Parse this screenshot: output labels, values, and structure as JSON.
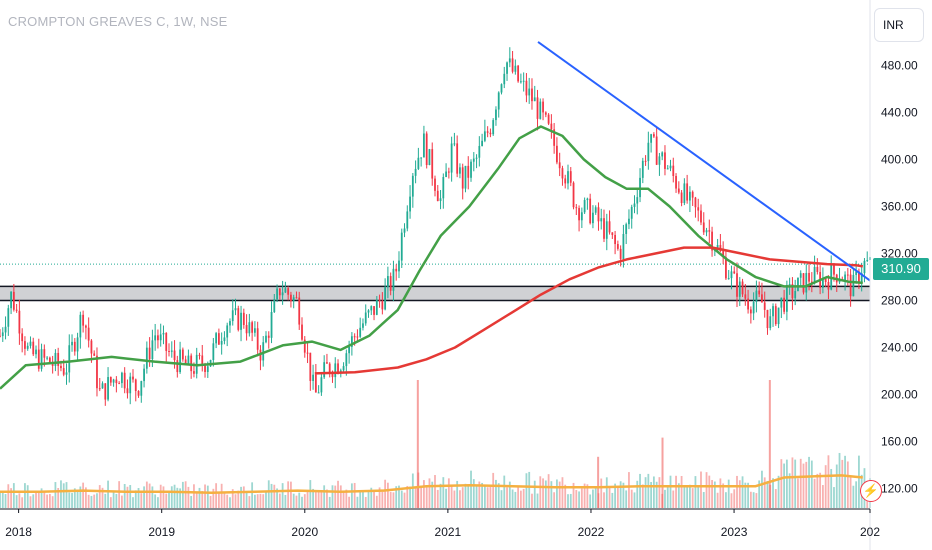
{
  "header": {
    "symbol": "CROMPTON GREAVES C, 1W, NSE"
  },
  "currency": "INR",
  "last_price_label": "310.90",
  "flash_icon": "lightning-icon",
  "colors": {
    "up": "#22ab94",
    "down": "#f23645",
    "trendline": "#2962ff",
    "sma_short": "#43a047",
    "sma_long": "#e53935",
    "volume_ma": "#f5b041",
    "zone_fill": "#c8c9cd",
    "price_tag": "#22ab94"
  },
  "chart_data": {
    "type": "line",
    "title": "CROMPTON GREAVES C, 1W, NSE",
    "y_axis": {
      "ticks": [
        "480.00",
        "440.00",
        "400.00",
        "360.00",
        "320.00",
        "280.00",
        "240.00",
        "200.00",
        "160.00",
        "120.00"
      ],
      "ylim": [
        112,
        505
      ]
    },
    "x_axis": {
      "ticks": [
        "2018",
        "2019",
        "2020",
        "2021",
        "2022",
        "2023",
        "202"
      ]
    },
    "last_price": 310.9,
    "price_series": {
      "name": "Close",
      "x": [
        2017.92,
        2018.0,
        2018.12,
        2018.25,
        2018.38,
        2018.5,
        2018.62,
        2018.75,
        2018.88,
        2019.0,
        2019.12,
        2019.25,
        2019.38,
        2019.5,
        2019.62,
        2019.75,
        2019.88,
        2020.0,
        2020.12,
        2020.2,
        2020.3,
        2020.42,
        2020.55,
        2020.68,
        2020.8,
        2020.88,
        2021.0,
        2021.08,
        2021.15,
        2021.25,
        2021.35,
        2021.45,
        2021.55,
        2021.65,
        2021.75,
        2021.85,
        2021.95,
        2022.05,
        2022.15,
        2022.25,
        2022.35,
        2022.45,
        2022.55,
        2022.65,
        2022.75,
        2022.85,
        2022.95,
        2023.05,
        2023.15,
        2023.25,
        2023.3,
        2023.38,
        2023.48,
        2023.58,
        2023.68,
        2023.78,
        2023.88,
        2023.95
      ],
      "y": [
        250,
        285,
        235,
        228,
        222,
        270,
        200,
        218,
        205,
        252,
        232,
        222,
        230,
        262,
        265,
        235,
        292,
        278,
        198,
        222,
        228,
        255,
        275,
        300,
        390,
        415,
        365,
        410,
        380,
        400,
        430,
        485,
        465,
        450,
        425,
        395,
        360,
        355,
        340,
        320,
        365,
        415,
        400,
        380,
        360,
        345,
        320,
        295,
        280,
        278,
        260,
        278,
        290,
        300,
        298,
        305,
        290,
        310.9
      ]
    },
    "series": [
      {
        "name": "",
        "kind": "sma_short",
        "x": [
          2017.92,
          2018.1,
          2018.4,
          2018.7,
          2019.0,
          2019.3,
          2019.6,
          2019.9,
          2020.1,
          2020.3,
          2020.5,
          2020.7,
          2020.85,
          2021.0,
          2021.2,
          2021.4,
          2021.55,
          2021.7,
          2021.85,
          2022.0,
          2022.15,
          2022.3,
          2022.45,
          2022.6,
          2022.8,
          2023.0,
          2023.2,
          2023.4,
          2023.55,
          2023.7,
          2023.85,
          2023.95
        ],
        "y": [
          205,
          225,
          228,
          232,
          228,
          225,
          228,
          242,
          245,
          238,
          250,
          272,
          305,
          335,
          360,
          392,
          418,
          428,
          420,
          400,
          385,
          375,
          375,
          360,
          335,
          315,
          300,
          292,
          292,
          300,
          296,
          295
        ]
      },
      {
        "name": "",
        "kind": "sma_long",
        "x": [
          2020.12,
          2020.4,
          2020.7,
          2020.9,
          2021.1,
          2021.3,
          2021.5,
          2021.7,
          2021.9,
          2022.1,
          2022.3,
          2022.5,
          2022.7,
          2022.9,
          2023.1,
          2023.3,
          2023.5,
          2023.7,
          2023.9,
          2023.95
        ],
        "y": [
          218,
          219,
          223,
          230,
          240,
          255,
          270,
          285,
          298,
          308,
          315,
          320,
          325,
          325,
          320,
          315,
          313,
          311,
          310,
          309
        ]
      }
    ],
    "trendline": {
      "from": {
        "x": 2021.68,
        "y": 500
      },
      "to": {
        "x": 2024.0,
        "y": 297
      }
    },
    "support_zone": {
      "low": 280,
      "high": 292
    },
    "volume": {
      "x": [
        2017.92,
        2018.2,
        2018.5,
        2018.8,
        2019.1,
        2019.4,
        2019.7,
        2020.0,
        2020.3,
        2020.6,
        2020.9,
        2021.2,
        2021.5,
        2021.8,
        2022.1,
        2022.4,
        2022.7,
        2023.0,
        2023.2,
        2023.4,
        2023.6,
        2023.8,
        2023.95
      ],
      "spikes": [
        {
          "x": 2020.84,
          "v": 1.0
        },
        {
          "x": 2023.3,
          "v": 1.0
        },
        {
          "x": 2022.55,
          "v": 0.55
        },
        {
          "x": 2022.1,
          "v": 0.4
        }
      ],
      "ma_level": [
        0.15,
        0.15,
        0.16,
        0.15,
        0.15,
        0.14,
        0.15,
        0.16,
        0.15,
        0.16,
        0.2,
        0.21,
        0.2,
        0.19,
        0.19,
        0.2,
        0.2,
        0.2,
        0.2,
        0.28,
        0.29,
        0.3,
        0.28
      ]
    }
  }
}
